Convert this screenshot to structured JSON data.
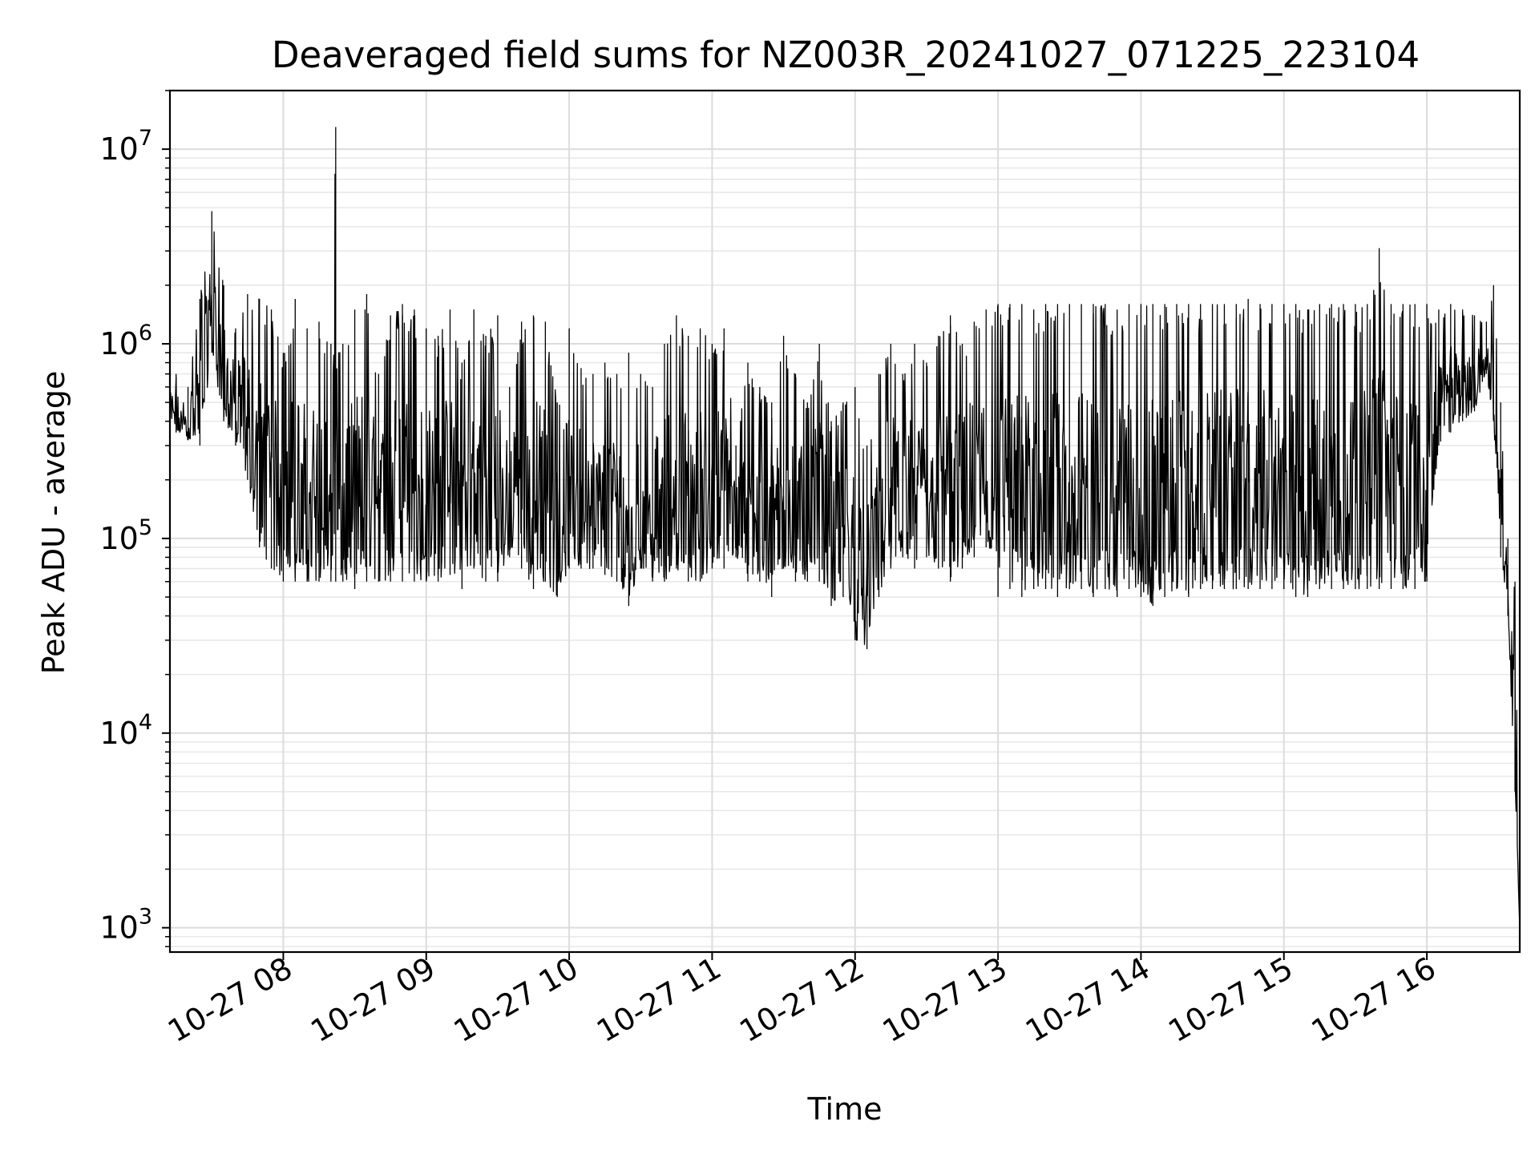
{
  "chart_data": {
    "type": "line",
    "title": "Deaveraged field sums for NZ003R_20241027_071225_223104",
    "xlabel": "Time",
    "ylabel": "Peak ADU - average",
    "x_range": [
      "10-27 07:12:25",
      "10-27 16:39"
    ],
    "ylim": [
      750,
      20000000
    ],
    "yscale": "log",
    "grid": true,
    "x_ticks": [
      "10-27 08",
      "10-27 09",
      "10-27 10",
      "10-27 11",
      "10-27 12",
      "10-27 13",
      "10-27 14",
      "10-27 15",
      "10-27 16"
    ],
    "y_ticks": [
      {
        "base": "10",
        "exp": "3",
        "value": 1000
      },
      {
        "base": "10",
        "exp": "4",
        "value": 10000
      },
      {
        "base": "10",
        "exp": "5",
        "value": 100000
      },
      {
        "base": "10",
        "exp": "6",
        "value": 1000000
      },
      {
        "base": "10",
        "exp": "7",
        "value": 10000000
      }
    ],
    "series": [
      {
        "color": "#000000",
        "x": [
          "10-27 07:12:25",
          "10-27 07:15",
          "10-27 07:20",
          "10-27 07:25",
          "10-27 07:30",
          "10-27 07:35",
          "10-27 07:40",
          "10-27 07:45",
          "10-27 07:50",
          "10-27 07:55",
          "10-27 08:00",
          "10-27 08:05",
          "10-27 08:10",
          "10-27 08:15",
          "10-27 08:20",
          "10-27 08:22",
          "10-27 08:25",
          "10-27 08:30",
          "10-27 08:35",
          "10-27 08:40",
          "10-27 08:45",
          "10-27 08:50",
          "10-27 08:55",
          "10-27 09:00",
          "10-27 09:05",
          "10-27 09:10",
          "10-27 09:15",
          "10-27 09:20",
          "10-27 09:25",
          "10-27 09:30",
          "10-27 09:35",
          "10-27 09:40",
          "10-27 09:45",
          "10-27 09:50",
          "10-27 09:55",
          "10-27 10:00",
          "10-27 10:05",
          "10-27 10:10",
          "10-27 10:15",
          "10-27 10:20",
          "10-27 10:25",
          "10-27 10:30",
          "10-27 10:35",
          "10-27 10:40",
          "10-27 10:45",
          "10-27 10:50",
          "10-27 10:55",
          "10-27 11:00",
          "10-27 11:05",
          "10-27 11:10",
          "10-27 11:15",
          "10-27 11:20",
          "10-27 11:25",
          "10-27 11:30",
          "10-27 11:35",
          "10-27 11:40",
          "10-27 11:45",
          "10-27 11:50",
          "10-27 11:55",
          "10-27 12:00",
          "10-27 12:05",
          "10-27 12:10",
          "10-27 12:15",
          "10-27 12:20",
          "10-27 12:25",
          "10-27 12:30",
          "10-27 12:35",
          "10-27 12:40",
          "10-27 12:45",
          "10-27 12:50",
          "10-27 12:55",
          "10-27 13:00",
          "10-27 13:05",
          "10-27 13:10",
          "10-27 13:15",
          "10-27 13:20",
          "10-27 13:25",
          "10-27 13:30",
          "10-27 13:35",
          "10-27 13:40",
          "10-27 13:45",
          "10-27 13:50",
          "10-27 13:55",
          "10-27 14:00",
          "10-27 14:05",
          "10-27 14:10",
          "10-27 14:15",
          "10-27 14:20",
          "10-27 14:25",
          "10-27 14:30",
          "10-27 14:35",
          "10-27 14:40",
          "10-27 14:45",
          "10-27 14:50",
          "10-27 14:55",
          "10-27 15:00",
          "10-27 15:05",
          "10-27 15:10",
          "10-27 15:15",
          "10-27 15:20",
          "10-27 15:25",
          "10-27 15:30",
          "10-27 15:35",
          "10-27 15:40",
          "10-27 15:45",
          "10-27 15:50",
          "10-27 15:55",
          "10-27 16:00",
          "10-27 16:05",
          "10-27 16:10",
          "10-27 16:15",
          "10-27 16:20",
          "10-27 16:25",
          "10-27 16:28",
          "10-27 16:31",
          "10-27 16:34",
          "10-27 16:37",
          "10-27 16:39"
        ],
        "max": [
          650000,
          700000,
          600000,
          1700000,
          4800000,
          2000000,
          1200000,
          1800000,
          1700000,
          1500000,
          900000,
          1700000,
          1200000,
          1300000,
          1000000,
          13000000,
          1000000,
          1500000,
          1800000,
          700000,
          1400000,
          1600000,
          1500000,
          1200000,
          1100000,
          1500000,
          800000,
          1500000,
          1100000,
          1400000,
          600000,
          1300000,
          1400000,
          1300000,
          500000,
          1200000,
          750000,
          700000,
          800000,
          700000,
          900000,
          700000,
          600000,
          1000000,
          1400000,
          1100000,
          1200000,
          1000000,
          1200000,
          300000,
          800000,
          600000,
          500000,
          1100000,
          700000,
          500000,
          1000000,
          400000,
          500000,
          600000,
          300000,
          700000,
          1000000,
          700000,
          1000000,
          800000,
          1100000,
          1400000,
          1000000,
          1300000,
          1500000,
          1600000,
          1600000,
          1600000,
          1500000,
          1600000,
          1600000,
          1600000,
          1600000,
          1600000,
          1600000,
          1500000,
          1600000,
          1600000,
          1600000,
          1600000,
          1600000,
          1600000,
          1600000,
          1600000,
          1600000,
          1600000,
          1700000,
          1600000,
          1600000,
          1600000,
          1600000,
          1500000,
          1600000,
          1600000,
          1600000,
          1600000,
          1600000,
          3100000,
          1600000,
          1600000,
          1600000,
          1600000,
          1500000,
          1600000,
          1500000,
          1400000,
          1300000,
          2000000,
          500000,
          100000,
          60000,
          1000
        ],
        "min": [
          400000,
          350000,
          320000,
          300000,
          900000,
          400000,
          300000,
          200000,
          90000,
          70000,
          60000,
          60000,
          60000,
          60000,
          60000,
          60000,
          60000,
          55000,
          60000,
          60000,
          60000,
          60000,
          60000,
          60000,
          60000,
          65000,
          55000,
          70000,
          60000,
          60000,
          80000,
          70000,
          55000,
          60000,
          50000,
          70000,
          70000,
          70000,
          65000,
          60000,
          45000,
          70000,
          60000,
          60000,
          70000,
          60000,
          60000,
          70000,
          70000,
          80000,
          60000,
          60000,
          50000,
          70000,
          60000,
          60000,
          60000,
          45000,
          50000,
          30000,
          27000,
          50000,
          70000,
          80000,
          70000,
          80000,
          70000,
          60000,
          70000,
          80000,
          90000,
          50000,
          55000,
          50000,
          55000,
          55000,
          50000,
          55000,
          55000,
          50000,
          55000,
          50000,
          55000,
          50000,
          45000,
          50000,
          55000,
          50000,
          55000,
          55000,
          55000,
          55000,
          55000,
          55000,
          55000,
          55000,
          50000,
          50000,
          55000,
          55000,
          55000,
          55000,
          55000,
          55000,
          55000,
          55000,
          55000,
          60000,
          300000,
          350000,
          400000,
          450000,
          700000,
          400000,
          80000,
          40000,
          5000,
          1000
        ]
      }
    ]
  }
}
